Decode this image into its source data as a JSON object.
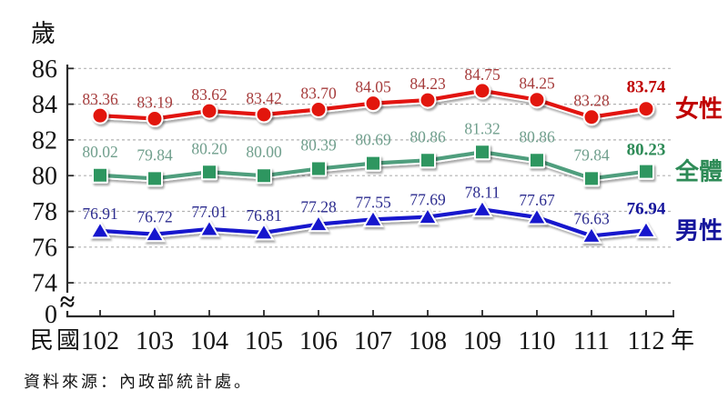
{
  "figure": {
    "unit_label": "歲",
    "x_axis_prefix": "民國",
    "x_axis_suffix": "年",
    "source_note": "資料來源：內政部統計處。"
  },
  "chart_data": {
    "type": "line",
    "title": "",
    "xlabel": "年",
    "ylabel": "歲",
    "categories": [
      "102",
      "103",
      "104",
      "105",
      "106",
      "107",
      "108",
      "109",
      "110",
      "111",
      "112"
    ],
    "y_axis_ticks": [
      86,
      84,
      82,
      80,
      78,
      76,
      74
    ],
    "y_axis_zero_label": "0",
    "axis_break_symbol": "≈",
    "ylim": [
      74,
      86
    ],
    "grid": true,
    "legend_position": "right-of-last-point",
    "series": [
      {
        "name": "女性",
        "marker": "circle",
        "values": [
          83.36,
          83.19,
          83.62,
          83.42,
          83.7,
          84.05,
          84.23,
          84.75,
          84.25,
          83.28,
          83.74
        ],
        "labels": [
          "83.36",
          "83.19",
          "83.62",
          "83.42",
          "83.70",
          "84.05",
          "84.23",
          "84.75",
          "84.25",
          "83.28",
          "83.74"
        ],
        "line_color": "#e21410",
        "marker_color": "#e21410",
        "label_color": "#a63c3c",
        "final_label_color": "#c00000",
        "name_color": "#c00000"
      },
      {
        "name": "全體",
        "marker": "square",
        "values": [
          80.02,
          79.84,
          80.2,
          80.0,
          80.39,
          80.69,
          80.86,
          81.32,
          80.86,
          79.84,
          80.23
        ],
        "labels": [
          "80.02",
          "79.84",
          "80.20",
          "80.00",
          "80.39",
          "80.69",
          "80.86",
          "81.32",
          "80.86",
          "79.84",
          "80.23"
        ],
        "line_color": "#4f9e7d",
        "marker_color": "#2e9660",
        "label_color": "#6f9e8c",
        "final_label_color": "#2e8b57",
        "name_color": "#2e8b57"
      },
      {
        "name": "男性",
        "marker": "triangle",
        "values": [
          76.91,
          76.72,
          77.01,
          76.81,
          77.28,
          77.55,
          77.69,
          78.11,
          77.67,
          76.63,
          76.94
        ],
        "labels": [
          "76.91",
          "76.72",
          "77.01",
          "76.81",
          "77.28",
          "77.55",
          "77.69",
          "78.11",
          "77.67",
          "76.63",
          "76.94"
        ],
        "line_color": "#1717cd",
        "marker_color": "#1717cd",
        "label_color": "#2c2c8f",
        "final_label_color": "#15159c",
        "name_color": "#15159c"
      }
    ]
  }
}
